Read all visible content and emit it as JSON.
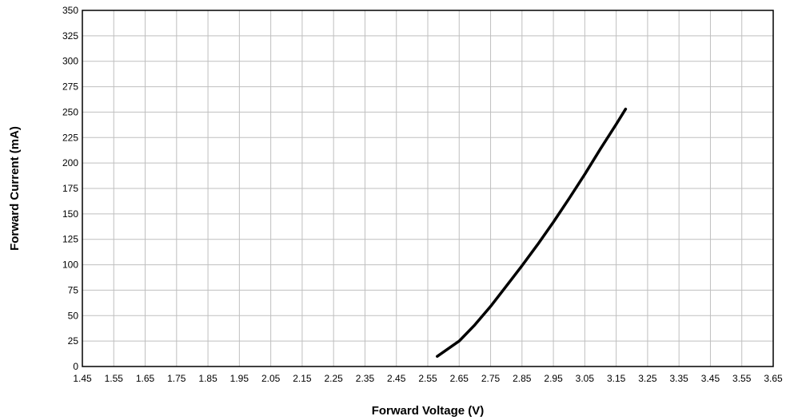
{
  "chart_data": {
    "type": "line",
    "title": "",
    "xlabel": "Forward Voltage (V)",
    "ylabel": "Forward Current (mA)",
    "xlim": [
      1.45,
      3.65
    ],
    "ylim": [
      0,
      350
    ],
    "xticks": [
      "1.45",
      "1.55",
      "1.65",
      "1.75",
      "1.85",
      "1.95",
      "2.05",
      "2.15",
      "2.25",
      "2.35",
      "2.45",
      "2.55",
      "2.65",
      "2.75",
      "2.85",
      "2.95",
      "3.05",
      "3.15",
      "3.25",
      "3.35",
      "3.45",
      "3.55",
      "3.65"
    ],
    "yticks": [
      "0",
      "25",
      "50",
      "75",
      "100",
      "125",
      "150",
      "175",
      "200",
      "225",
      "250",
      "275",
      "300",
      "325",
      "350"
    ],
    "grid": true,
    "series": [
      {
        "color": "#000000",
        "x": [
          2.58,
          2.65,
          2.7,
          2.75,
          2.8,
          2.85,
          2.9,
          2.95,
          3.0,
          3.05,
          3.1,
          3.15,
          3.18
        ],
        "y": [
          10,
          25,
          41,
          59,
          79,
          99,
          120,
          142,
          165,
          189,
          214,
          238,
          253
        ]
      }
    ]
  }
}
